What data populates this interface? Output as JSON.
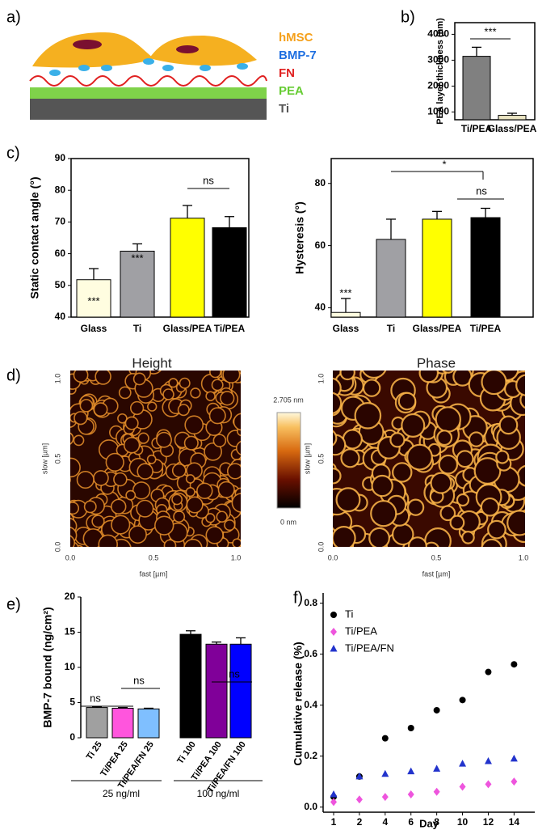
{
  "panel_labels": [
    "a)",
    "b)",
    "c)",
    "d)",
    "e)",
    "f)"
  ],
  "schematic": {
    "labels": [
      "hMSC",
      "BMP-7",
      "FN",
      "PEA",
      "Ti"
    ]
  },
  "afm": {
    "titles": [
      "Height",
      "Phase"
    ],
    "x_label": "fast [µm]",
    "y_label": "slow [µm]",
    "ticks": [
      "0.0",
      "0.5",
      "1.0"
    ],
    "colorbar": {
      "max": "2.705 nm",
      "min": "0 nm"
    }
  },
  "chart_data": [
    {
      "type": "bar",
      "y_label": "PEA layer thickness (nm)",
      "categories": [
        "Ti/PEA",
        "Glass/PEA"
      ],
      "values": [
        3150,
        870
      ],
      "errors": [
        350,
        80
      ],
      "colors": [
        "#808080",
        "#ece6c4"
      ],
      "ylim": [
        700,
        4450
      ],
      "yticks": [
        1000,
        2000,
        3000,
        4000
      ],
      "annotations": [
        "***"
      ]
    },
    {
      "type": "bar",
      "y_label": "Static contact angle (°)",
      "categories": [
        "Glass",
        "Ti",
        "Glass/PEA",
        "Ti/PEA"
      ],
      "values": [
        51.8,
        60.8,
        71.2,
        68.2
      ],
      "errors": [
        3.5,
        2.3,
        4,
        3.5
      ],
      "colors": [
        "#fffde0",
        "#a0a0a4",
        "#ffff00",
        "#000000"
      ],
      "ylim": [
        40,
        90
      ],
      "yticks": [
        40,
        50,
        60,
        70,
        80,
        90
      ],
      "annotations": [
        "***",
        "***",
        "ns"
      ]
    },
    {
      "type": "bar",
      "y_label": "Hysteresis (°)",
      "categories": [
        "Glass",
        "Ti",
        "Glass/PEA",
        "Ti/PEA"
      ],
      "values": [
        38.5,
        62,
        68.5,
        69
      ],
      "errors": [
        4.5,
        6.5,
        2.5,
        3
      ],
      "colors": [
        "#fffde0",
        "#a0a0a4",
        "#ffff00",
        "#000000"
      ],
      "ylim": [
        37,
        88
      ],
      "yticks": [
        40,
        60,
        80
      ],
      "annotations": [
        "***",
        "ns",
        "*"
      ]
    },
    {
      "type": "bar",
      "y_label": "BMP-7 bound (ng/cm²)",
      "categories": [
        "Ti 25",
        "Ti/PEA 25",
        "Ti/PEA/FN 25",
        "Ti 100",
        "Ti/PEA 100",
        "Ti/PEA/FN 100"
      ],
      "values": [
        4.3,
        4.2,
        4.1,
        14.7,
        13.3,
        13.3
      ],
      "errors": [
        0.1,
        0.1,
        0.1,
        0.5,
        0.3,
        0.9
      ],
      "colors": [
        "#a0a0a0",
        "#ff55dd",
        "#7fbfff",
        "#000000",
        "#800099",
        "#0000ff"
      ],
      "ylim": [
        0,
        20
      ],
      "yticks": [
        0,
        5,
        10,
        15,
        20
      ],
      "groups": [
        "25 ng/ml",
        "100 ng/ml"
      ],
      "annotations": [
        "ns",
        "ns",
        "***",
        "ns"
      ]
    },
    {
      "type": "scatter",
      "y_label": "Cumulative release (%)",
      "x_label": "Day",
      "categories": [
        "1",
        "2",
        "4",
        "6",
        "8",
        "10",
        "12",
        "14"
      ],
      "legend": "upper left",
      "series": [
        {
          "name": "Ti",
          "color": "#000000",
          "marker": "circle",
          "values": [
            0.04,
            0.12,
            0.27,
            0.31,
            0.38,
            0.42,
            0.53,
            0.56
          ]
        },
        {
          "name": "Ti/PEA",
          "color": "#ee55dd",
          "marker": "diamond",
          "values": [
            0.02,
            0.03,
            0.04,
            0.05,
            0.06,
            0.08,
            0.09,
            0.1
          ]
        },
        {
          "name": "Ti/PEA/FN",
          "color": "#2233cc",
          "marker": "triangle",
          "values": [
            0.05,
            0.12,
            0.13,
            0.14,
            0.15,
            0.17,
            0.18,
            0.19
          ]
        }
      ],
      "ylim": [
        -0.02,
        0.84
      ],
      "yticks": [
        {
          "value": 0,
          "label": "0.0"
        },
        0.2,
        0.4,
        0.6,
        0.8
      ]
    }
  ]
}
